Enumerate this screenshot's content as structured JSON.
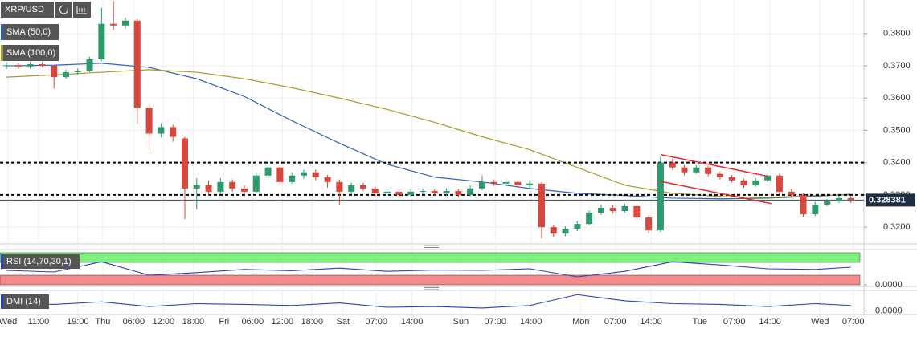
{
  "chart_data": [
    {
      "type": "candlestick",
      "symbol": "XRP/USD",
      "x": [
        0,
        1,
        2,
        3,
        4,
        5,
        6,
        7,
        8,
        9,
        10,
        11,
        12,
        13,
        14,
        15,
        16,
        17,
        18,
        19,
        20,
        21,
        22,
        23,
        24,
        25,
        26,
        27,
        28,
        29,
        30,
        31,
        32,
        33,
        34,
        35,
        36,
        37,
        38,
        39,
        40,
        41,
        42,
        43,
        44,
        45,
        46,
        47,
        48,
        49,
        50,
        51,
        52,
        53,
        54,
        55,
        56,
        57,
        58,
        59,
        60,
        61,
        62,
        63,
        64,
        65,
        66,
        67,
        68,
        69,
        70,
        71
      ],
      "open": [
        0.37,
        0.3702,
        0.3698,
        0.3705,
        0.37,
        0.3665,
        0.368,
        0.3685,
        0.372,
        0.383,
        0.3825,
        0.384,
        0.357,
        0.349,
        0.351,
        0.3475,
        0.332,
        0.333,
        0.331,
        0.334,
        0.332,
        0.331,
        0.336,
        0.3385,
        0.334,
        0.336,
        0.337,
        0.3355,
        0.334,
        0.331,
        0.333,
        0.332,
        0.3305,
        0.331,
        0.33,
        0.331,
        0.3312,
        0.3305,
        0.3312,
        0.33,
        0.332,
        0.334,
        0.3335,
        0.334,
        0.333,
        0.3335,
        0.32,
        0.318,
        0.3195,
        0.321,
        0.3245,
        0.326,
        0.325,
        0.3265,
        0.323,
        0.319,
        0.34,
        0.3385,
        0.337,
        0.3385,
        0.3365,
        0.3355,
        0.3345,
        0.333,
        0.3345,
        0.336,
        0.331,
        0.33,
        0.324,
        0.327,
        0.328,
        0.329
      ],
      "high": [
        0.3712,
        0.3708,
        0.3712,
        0.3712,
        0.3702,
        0.3688,
        0.3692,
        0.3728,
        0.388,
        0.39,
        0.385,
        0.3845,
        0.3585,
        0.3522,
        0.3518,
        0.348,
        0.3352,
        0.3345,
        0.3352,
        0.3348,
        0.333,
        0.3368,
        0.34,
        0.3392,
        0.337,
        0.3378,
        0.3378,
        0.3362,
        0.3348,
        0.3338,
        0.3338,
        0.3326,
        0.3318,
        0.3316,
        0.3318,
        0.332,
        0.3318,
        0.332,
        0.3318,
        0.333,
        0.336,
        0.3348,
        0.3348,
        0.3346,
        0.3345,
        0.334,
        0.3208,
        0.3202,
        0.3218,
        0.3252,
        0.327,
        0.3268,
        0.3272,
        0.327,
        0.3236,
        0.342,
        0.3412,
        0.3392,
        0.3392,
        0.339,
        0.3372,
        0.3362,
        0.335,
        0.3352,
        0.3366,
        0.3365,
        0.3318,
        0.3305,
        0.3278,
        0.3288,
        0.3298,
        0.3298
      ],
      "low": [
        0.369,
        0.369,
        0.3692,
        0.3695,
        0.363,
        0.366,
        0.3672,
        0.368,
        0.3715,
        0.381,
        0.3815,
        0.352,
        0.344,
        0.3478,
        0.3465,
        0.3225,
        0.3255,
        0.3298,
        0.3302,
        0.331,
        0.3298,
        0.3305,
        0.3352,
        0.3332,
        0.3335,
        0.335,
        0.3345,
        0.3322,
        0.3268,
        0.3302,
        0.3312,
        0.3292,
        0.329,
        0.3288,
        0.3295,
        0.3302,
        0.3298,
        0.3298,
        0.3292,
        0.3296,
        0.3315,
        0.3328,
        0.333,
        0.3322,
        0.3322,
        0.3165,
        0.317,
        0.3172,
        0.3188,
        0.3205,
        0.3238,
        0.3242,
        0.3245,
        0.3222,
        0.318,
        0.3185,
        0.3378,
        0.336,
        0.3365,
        0.3358,
        0.3348,
        0.3338,
        0.3322,
        0.3325,
        0.334,
        0.3302,
        0.3292,
        0.3232,
        0.3235,
        0.3265,
        0.3275,
        0.3275
      ],
      "close": [
        0.3702,
        0.3698,
        0.3705,
        0.37,
        0.3665,
        0.368,
        0.3685,
        0.372,
        0.383,
        0.3825,
        0.384,
        0.357,
        0.349,
        0.351,
        0.348,
        0.332,
        0.333,
        0.331,
        0.334,
        0.332,
        0.331,
        0.336,
        0.3385,
        0.334,
        0.336,
        0.337,
        0.3355,
        0.334,
        0.331,
        0.333,
        0.332,
        0.3305,
        0.331,
        0.33,
        0.331,
        0.3312,
        0.3305,
        0.3312,
        0.33,
        0.332,
        0.334,
        0.3335,
        0.334,
        0.333,
        0.3335,
        0.32,
        0.318,
        0.3195,
        0.321,
        0.3245,
        0.326,
        0.325,
        0.3265,
        0.323,
        0.319,
        0.34,
        0.3385,
        0.337,
        0.3385,
        0.3365,
        0.3355,
        0.3345,
        0.333,
        0.3345,
        0.336,
        0.331,
        0.33,
        0.324,
        0.327,
        0.328,
        0.329,
        0.328381
      ],
      "up_color": "#2e9a6b",
      "down_color": "#d9463b",
      "series": [
        {
          "name": "SMA (50,0)",
          "color": "#2f62b8",
          "x": [
            0,
            4,
            8,
            12,
            16,
            20,
            24,
            28,
            32,
            36,
            40,
            44,
            48,
            52,
            56,
            60,
            64,
            68,
            71
          ],
          "values": [
            0.37,
            0.3702,
            0.3708,
            0.3695,
            0.366,
            0.3605,
            0.353,
            0.346,
            0.3395,
            0.3355,
            0.334,
            0.332,
            0.3305,
            0.3298,
            0.329,
            0.3288,
            0.329,
            0.3296,
            0.3302
          ]
        },
        {
          "name": "SMA (100,0)",
          "color": "#a89a2c",
          "x": [
            0,
            4,
            8,
            12,
            16,
            20,
            24,
            28,
            32,
            36,
            40,
            44,
            48,
            52,
            56,
            60,
            64,
            68,
            71
          ],
          "values": [
            0.3665,
            0.3672,
            0.368,
            0.3688,
            0.368,
            0.366,
            0.3632,
            0.36,
            0.3565,
            0.3525,
            0.348,
            0.344,
            0.3385,
            0.333,
            0.3305,
            0.3295,
            0.3292,
            0.3298,
            0.33
          ]
        }
      ],
      "levels": [
        0.34,
        0.33
      ],
      "last_price": 0.328381,
      "channel": {
        "color": "#e8262b",
        "lines": [
          {
            "x": [
              55,
              64
            ],
            "values": [
              0.3425,
              0.3358
            ]
          },
          {
            "x": [
              55,
              64.3
            ],
            "values": [
              0.3342,
              0.3273
            ]
          }
        ]
      },
      "xlim": [
        -0.54,
        72.1
      ],
      "ylim": [
        0.3158,
        0.3904
      ],
      "yticks": [
        {
          "value": 0.32,
          "label": "0.3200"
        },
        {
          "value": 0.33,
          "label": "0.3300"
        },
        {
          "value": 0.34,
          "label": "0.3400"
        },
        {
          "value": 0.35,
          "label": "0.3500"
        },
        {
          "value": 0.36,
          "label": "0.3600"
        },
        {
          "value": 0.37,
          "label": "0.3700"
        },
        {
          "value": 0.38,
          "label": "0.3800"
        }
      ],
      "xticks": [
        {
          "value": 0.14,
          "label": "Wed"
        },
        {
          "value": 2.7,
          "label": "11:00"
        },
        {
          "value": 6.0,
          "label": "19:00"
        },
        {
          "value": 8.1,
          "label": "Thu"
        },
        {
          "value": 10.7,
          "label": "06:00"
        },
        {
          "value": 13.2,
          "label": "12:00"
        },
        {
          "value": 15.7,
          "label": "18:00"
        },
        {
          "value": 18.3,
          "label": "Fri"
        },
        {
          "value": 20.7,
          "label": "06:00"
        },
        {
          "value": 23.2,
          "label": "12:00"
        },
        {
          "value": 25.7,
          "label": "18:00"
        },
        {
          "value": 28.3,
          "label": "Sat"
        },
        {
          "value": 31.1,
          "label": "07:00"
        },
        {
          "value": 34.1,
          "label": "14:00"
        },
        {
          "value": 38.2,
          "label": "Sun"
        },
        {
          "value": 41.1,
          "label": "07:00"
        },
        {
          "value": 44.1,
          "label": "14:00"
        },
        {
          "value": 48.3,
          "label": "Mon"
        },
        {
          "value": 51.2,
          "label": "07:00"
        },
        {
          "value": 54.2,
          "label": "14:00"
        },
        {
          "value": 58.3,
          "label": "Tue"
        },
        {
          "value": 61.2,
          "label": "07:00"
        },
        {
          "value": 64.2,
          "label": "14:00"
        },
        {
          "value": 68.4,
          "label": "Wed"
        },
        {
          "value": 71.2,
          "label": "07:00"
        }
      ],
      "grid": true
    },
    {
      "type": "line",
      "title": "RSI (14,70,30,1)",
      "color": "#2b3fbf",
      "x": [
        0,
        4,
        8,
        12,
        16,
        20,
        24,
        28,
        32,
        36,
        40,
        44,
        48,
        52,
        56,
        60,
        64,
        68,
        71
      ],
      "values": [
        45,
        40,
        72,
        30,
        38,
        48,
        44,
        52,
        42,
        46,
        45,
        50,
        25,
        42,
        72,
        62,
        50,
        48,
        55
      ],
      "bands": [
        {
          "from": 70,
          "to": 100,
          "color": "#7ef07e"
        },
        {
          "from": 0,
          "to": 30,
          "color": "#f58a8a"
        }
      ],
      "ylim": [
        0,
        100
      ],
      "yticks": [
        {
          "value": 0,
          "label": "0.0000"
        }
      ]
    },
    {
      "type": "line",
      "title": "DMI (14)",
      "color": "#2b3fbf",
      "x": [
        0,
        4,
        8,
        12,
        16,
        20,
        24,
        28,
        32,
        36,
        40,
        44,
        48,
        52,
        56,
        60,
        64,
        68,
        71
      ],
      "values": [
        22,
        18,
        25,
        12,
        20,
        18,
        15,
        22,
        10,
        12,
        8,
        15,
        45,
        28,
        20,
        18,
        12,
        20,
        15
      ],
      "ylim": [
        -10,
        50
      ],
      "yticks": [
        {
          "value": 0,
          "label": "0.0000"
        }
      ]
    }
  ]
}
